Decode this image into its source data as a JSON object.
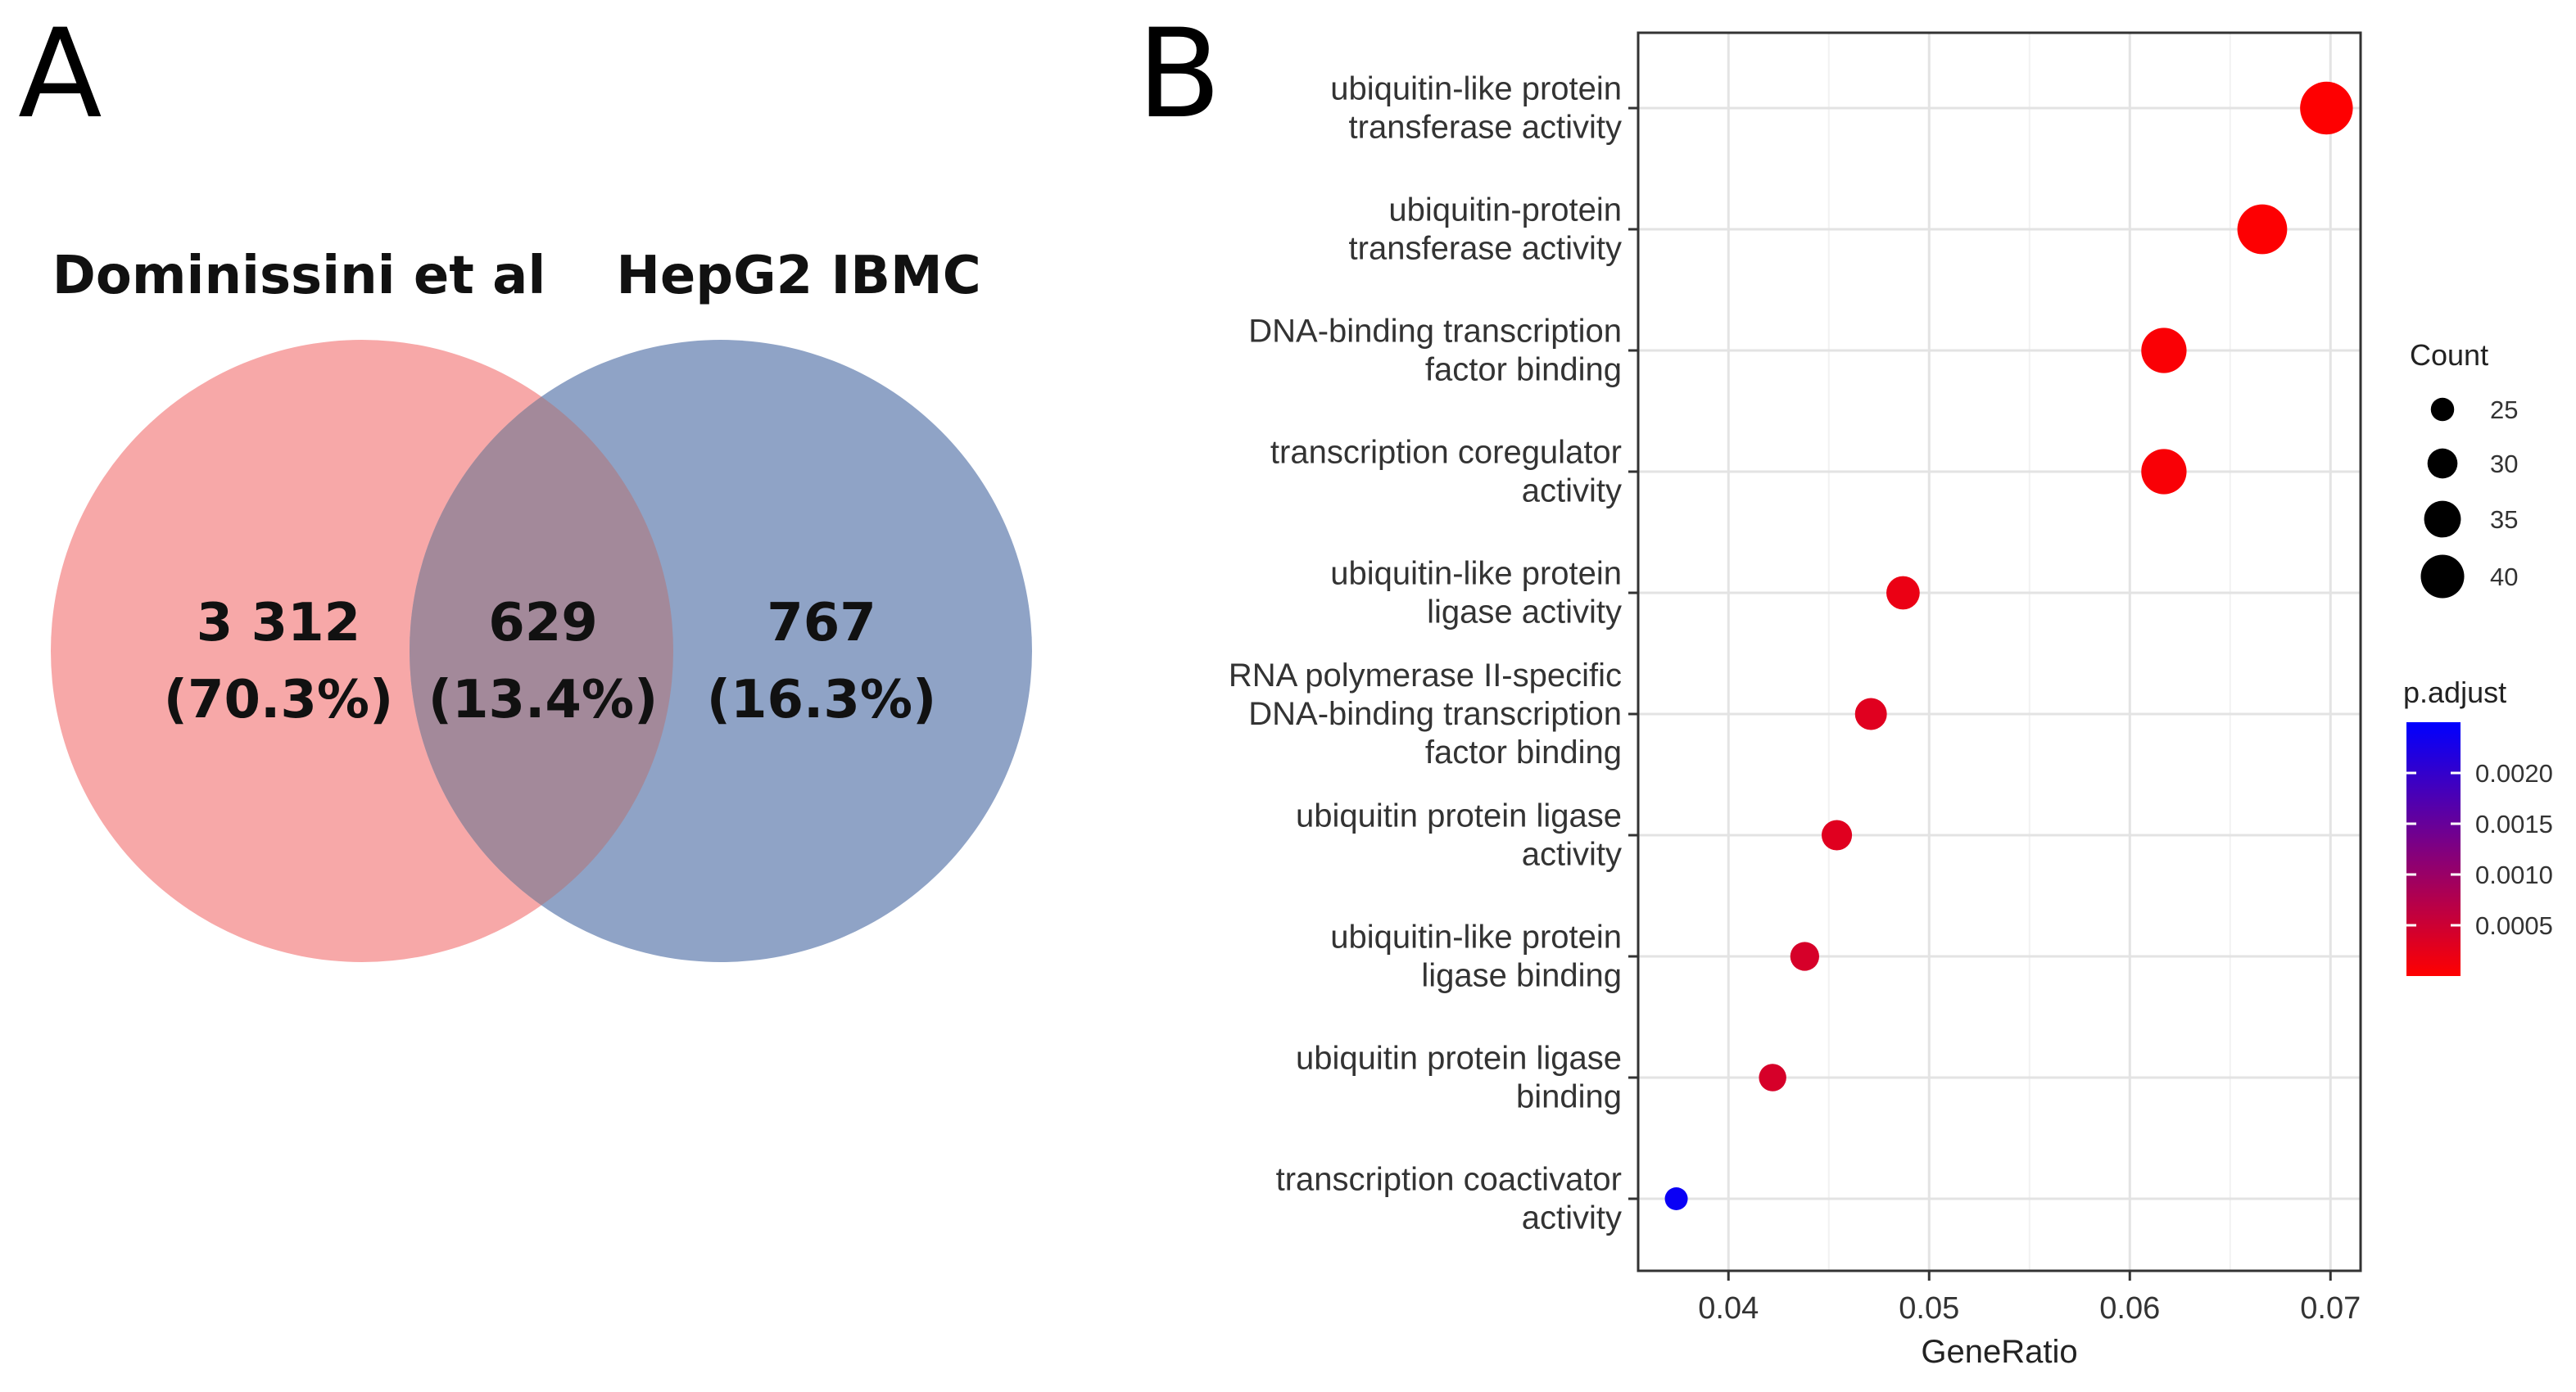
{
  "panels": {
    "a": "A",
    "b": "B"
  },
  "venn": {
    "left_set": "Dominissini et al",
    "right_set": "HepG2 IBMC",
    "left_only": {
      "count": "3 312",
      "pct": "(70.3%)"
    },
    "overlap": {
      "count": "629",
      "pct": "(13.4%)"
    },
    "right_only": {
      "count": "767",
      "pct": "(16.3%)"
    },
    "colors": {
      "left": "#f7a8a8",
      "right": "#8fa3c6",
      "overlap": "#a3899a"
    }
  },
  "chart_data": {
    "type": "scatter",
    "subtype": "dot plot",
    "xlabel": "GeneRatio",
    "ylabel": "",
    "xlim": [
      0.0355,
      0.0715
    ],
    "xticks": [
      0.04,
      0.05,
      0.06,
      0.07
    ],
    "xtick_labels": [
      "0.04",
      "0.05",
      "0.06",
      "0.07"
    ],
    "grid": true,
    "categories": [
      [
        "ubiquitin-like protein",
        "transferase activity"
      ],
      [
        "ubiquitin-protein",
        "transferase activity"
      ],
      [
        "DNA-binding transcription",
        "factor binding"
      ],
      [
        "transcription coregulator",
        "activity"
      ],
      [
        "ubiquitin-like protein",
        "ligase activity"
      ],
      [
        "RNA polymerase II-specific",
        "DNA-binding transcription",
        "factor binding"
      ],
      [
        "ubiquitin protein ligase",
        "activity"
      ],
      [
        "ubiquitin-like protein",
        "ligase binding"
      ],
      [
        "ubiquitin protein ligase",
        "binding"
      ],
      [
        "transcription coactivator",
        "activity"
      ]
    ],
    "gene_ratio": [
      0.0698,
      0.0666,
      0.0617,
      0.0617,
      0.0487,
      0.0471,
      0.0454,
      0.0438,
      0.0422,
      0.0374
    ],
    "count": [
      43,
      41,
      38,
      38,
      30,
      29,
      28,
      27,
      26,
      23
    ],
    "p_adjust": [
      1e-05,
      2e-05,
      5e-05,
      6e-05,
      0.0002,
      0.0003,
      0.0003,
      0.0004,
      0.0004,
      0.0024
    ],
    "legend": {
      "size_title": "Count",
      "size_breaks": [
        25,
        30,
        35,
        40
      ],
      "color_title": "p.adjust",
      "color_breaks": [
        0.002,
        0.0015,
        0.001,
        0.0005
      ],
      "color_break_labels": [
        "0.0020",
        "0.0015",
        "0.0010",
        "0.0005"
      ],
      "color_range": [
        0.0,
        0.0025
      ],
      "color_low": "#ff0000",
      "color_high": "#0000ff",
      "placement": "right"
    }
  }
}
